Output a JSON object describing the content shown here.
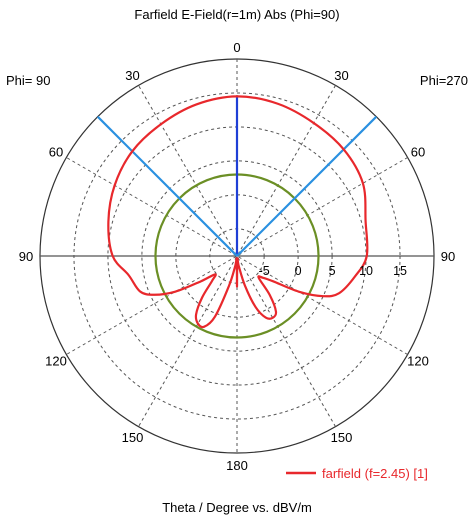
{
  "chart_data": {
    "type": "polar",
    "title": "Farfield E-Field(r=1m) Abs (Phi=90)",
    "xlabel": "Theta / Degree vs. dBV/m",
    "left_label": "Phi= 90",
    "right_label": "Phi=270",
    "angle_ticks": [
      {
        "angle": 0,
        "label": "0"
      },
      {
        "angle": -30,
        "label": "30"
      },
      {
        "angle": 30,
        "label": "30"
      },
      {
        "angle": -60,
        "label": "60"
      },
      {
        "angle": 60,
        "label": "60"
      },
      {
        "angle": -90,
        "label": "90"
      },
      {
        "angle": 90,
        "label": "90"
      },
      {
        "angle": -120,
        "label": "120"
      },
      {
        "angle": 120,
        "label": "120"
      },
      {
        "angle": -150,
        "label": "150"
      },
      {
        "angle": 150,
        "label": "150"
      },
      {
        "angle": 180,
        "label": "180"
      }
    ],
    "radial_ticks": [
      {
        "value": -5,
        "label": "-5"
      },
      {
        "value": 0,
        "label": "0"
      },
      {
        "value": 5,
        "label": "5"
      },
      {
        "value": 10,
        "label": "10"
      },
      {
        "value": 15,
        "label": "15"
      }
    ],
    "rlim": [
      -9,
      20
    ],
    "grid": true,
    "legend_position": "bottom-right",
    "series": [
      {
        "name": "farfield (f=2.45) [1]",
        "color": "#e8282c",
        "points": [
          [
            0,
            14.5
          ],
          [
            15,
            14.2
          ],
          [
            30,
            13.6
          ],
          [
            45,
            13.2
          ],
          [
            60,
            12.4
          ],
          [
            75,
            10.6
          ],
          [
            90,
            10.1
          ],
          [
            100,
            8.6
          ],
          [
            110,
            7.0
          ],
          [
            115,
            5.0
          ],
          [
            120,
            1.5
          ],
          [
            125,
            -2.5
          ],
          [
            130,
            -4.0
          ],
          [
            135,
            -4.5
          ],
          [
            140,
            -1.5
          ],
          [
            145,
            1.0
          ],
          [
            150,
            1.5
          ],
          [
            155,
            1.0
          ],
          [
            160,
            -1.0
          ],
          [
            165,
            -4.5
          ],
          [
            170,
            -7.5
          ],
          [
            175,
            -8.5
          ],
          [
            180,
            -4.5
          ],
          [
            185,
            -8.5
          ],
          [
            190,
            -7.5
          ],
          [
            195,
            -4.5
          ],
          [
            200,
            0.5
          ],
          [
            205,
            2.5
          ],
          [
            210,
            2.5
          ],
          [
            215,
            1.5
          ],
          [
            220,
            -1.0
          ],
          [
            225,
            -3.8
          ],
          [
            230,
            -4.8
          ],
          [
            235,
            -2.5
          ],
          [
            240,
            1.5
          ],
          [
            245,
            4.5
          ],
          [
            250,
            6.2
          ],
          [
            260,
            7.2
          ],
          [
            270,
            9.3
          ],
          [
            285,
            10.6
          ],
          [
            300,
            11.8
          ],
          [
            315,
            12.8
          ],
          [
            330,
            13.4
          ],
          [
            345,
            14.1
          ],
          [
            360,
            14.5
          ]
        ]
      },
      {
        "name": "circle",
        "color": "#6b8f25",
        "value": 3
      }
    ],
    "reference_lines": [
      {
        "color": "#1f3fd6",
        "angle": 0,
        "value": 14.5
      },
      {
        "color": "#2a90e0",
        "angle": -45,
        "value": 20
      },
      {
        "color": "#2a90e0",
        "angle": 45,
        "value": 20
      }
    ]
  }
}
